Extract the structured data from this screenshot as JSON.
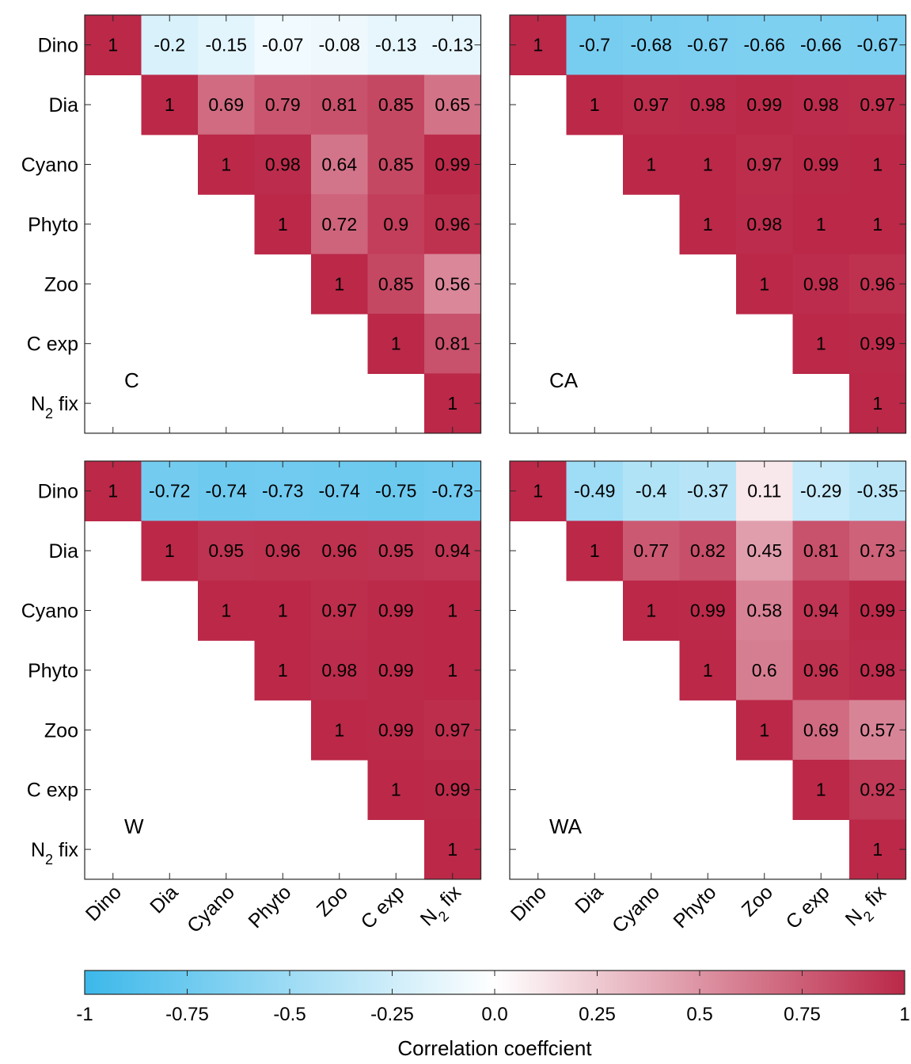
{
  "chart_data": {
    "type": "heatmap",
    "variables": [
      "Dino",
      "Dia",
      "Cyano",
      "Phyto",
      "Zoo",
      "C exp",
      "N2 fix"
    ],
    "variable_labels": [
      {
        "main": "Dino",
        "sub": ""
      },
      {
        "main": "Dia",
        "sub": ""
      },
      {
        "main": "Cyano",
        "sub": ""
      },
      {
        "main": "Phyto",
        "sub": ""
      },
      {
        "main": "Zoo",
        "sub": ""
      },
      {
        "main": "C exp",
        "sub": ""
      },
      {
        "main": "N",
        "sub": "2",
        "suffix": " fix"
      }
    ],
    "triangle": "upper",
    "panels": [
      {
        "label": "C",
        "matrix": [
          [
            1,
            -0.2,
            -0.15,
            -0.07,
            -0.08,
            -0.13,
            -0.13
          ],
          [
            null,
            1,
            0.69,
            0.79,
            0.81,
            0.85,
            0.65
          ],
          [
            null,
            null,
            1,
            0.98,
            0.64,
            0.85,
            0.99
          ],
          [
            null,
            null,
            null,
            1,
            0.72,
            0.9,
            0.96
          ],
          [
            null,
            null,
            null,
            null,
            1,
            0.85,
            0.56
          ],
          [
            null,
            null,
            null,
            null,
            null,
            1,
            0.81
          ],
          [
            null,
            null,
            null,
            null,
            null,
            null,
            1
          ]
        ]
      },
      {
        "label": "CA",
        "matrix": [
          [
            1,
            -0.7,
            -0.68,
            -0.67,
            -0.66,
            -0.66,
            -0.67
          ],
          [
            null,
            1,
            0.97,
            0.98,
            0.99,
            0.98,
            0.97
          ],
          [
            null,
            null,
            1,
            1,
            0.97,
            0.99,
            1
          ],
          [
            null,
            null,
            null,
            1,
            0.98,
            1,
            1
          ],
          [
            null,
            null,
            null,
            null,
            1,
            0.98,
            0.96
          ],
          [
            null,
            null,
            null,
            null,
            null,
            1,
            0.99
          ],
          [
            null,
            null,
            null,
            null,
            null,
            null,
            1
          ]
        ]
      },
      {
        "label": "W",
        "matrix": [
          [
            1,
            -0.72,
            -0.74,
            -0.73,
            -0.74,
            -0.75,
            -0.73
          ],
          [
            null,
            1,
            0.95,
            0.96,
            0.96,
            0.95,
            0.94
          ],
          [
            null,
            null,
            1,
            1,
            0.97,
            0.99,
            1
          ],
          [
            null,
            null,
            null,
            1,
            0.98,
            0.99,
            1
          ],
          [
            null,
            null,
            null,
            null,
            1,
            0.99,
            0.97
          ],
          [
            null,
            null,
            null,
            null,
            null,
            1,
            0.99
          ],
          [
            null,
            null,
            null,
            null,
            null,
            null,
            1
          ]
        ]
      },
      {
        "label": "WA",
        "matrix": [
          [
            1,
            -0.49,
            -0.4,
            -0.37,
            0.11,
            -0.29,
            -0.35
          ],
          [
            null,
            1,
            0.77,
            0.82,
            0.45,
            0.81,
            0.73
          ],
          [
            null,
            null,
            1,
            0.99,
            0.58,
            0.94,
            0.99
          ],
          [
            null,
            null,
            null,
            1,
            0.6,
            0.96,
            0.98
          ],
          [
            null,
            null,
            null,
            null,
            1,
            0.69,
            0.57
          ],
          [
            null,
            null,
            null,
            null,
            null,
            1,
            0.92
          ],
          [
            null,
            null,
            null,
            null,
            null,
            null,
            1
          ]
        ]
      }
    ],
    "colorbar": {
      "range": [
        -1,
        1
      ],
      "ticks": [
        -1,
        -0.75,
        -0.5,
        -0.25,
        0,
        0.25,
        0.5,
        0.75,
        1
      ],
      "tick_labels": [
        "-1",
        "-0.75",
        "-0.5",
        "-0.25",
        "0.0",
        "0.25",
        "0.5",
        "0.75",
        "1"
      ],
      "title": "Correlation coeffcient",
      "colors": {
        "negative": "#3cb8ea",
        "zero": "#ffffff",
        "positive": "#bb2848"
      },
      "orientation": "horizontal",
      "placement": "bottom"
    }
  }
}
